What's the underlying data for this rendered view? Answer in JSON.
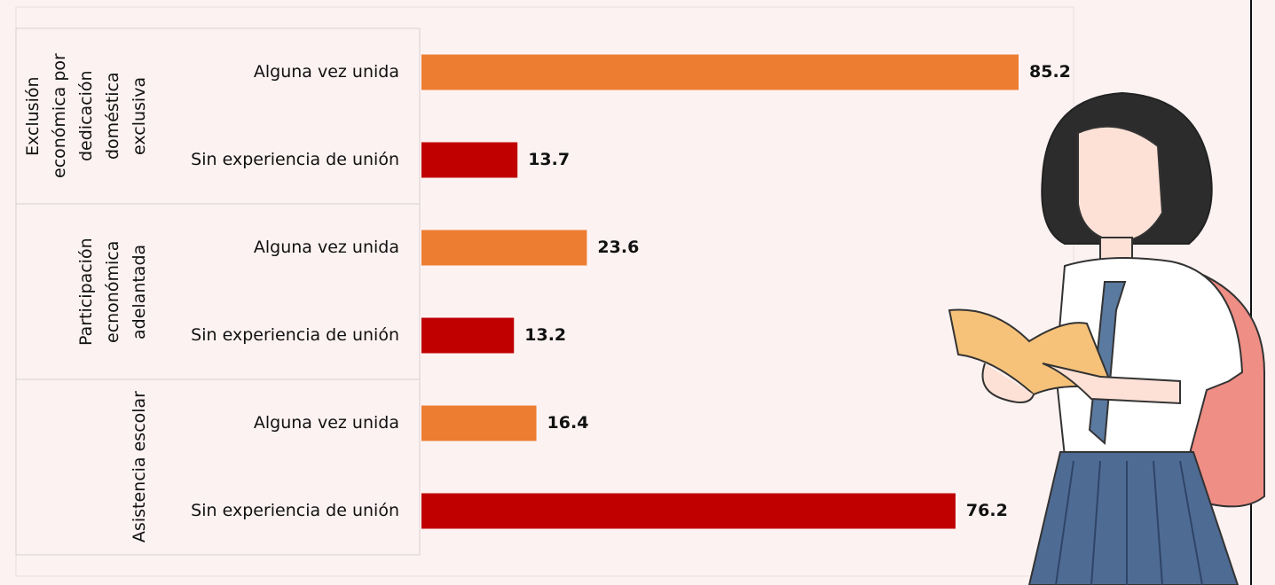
{
  "chart_data": {
    "type": "bar",
    "orientation": "horizontal",
    "bar_colors": [
      "#ed7d31",
      "#c00000"
    ],
    "groups": [
      {
        "name": "Exclusión económica por dedicación doméstica exclusiva",
        "categories": [
          "Alguna vez unida",
          "Sin experiencia de unión"
        ],
        "values": [
          85.2,
          13.7
        ]
      },
      {
        "name": "Participación ecnonómica adelantada",
        "categories": [
          "Alguna vez unida",
          "Sin experiencia de unión"
        ],
        "values": [
          23.6,
          13.2
        ]
      },
      {
        "name": "Asistencia escolar",
        "categories": [
          "Alguna vez unida",
          "Sin experiencia de unión"
        ],
        "values": [
          16.4,
          76.2
        ]
      }
    ]
  }
}
